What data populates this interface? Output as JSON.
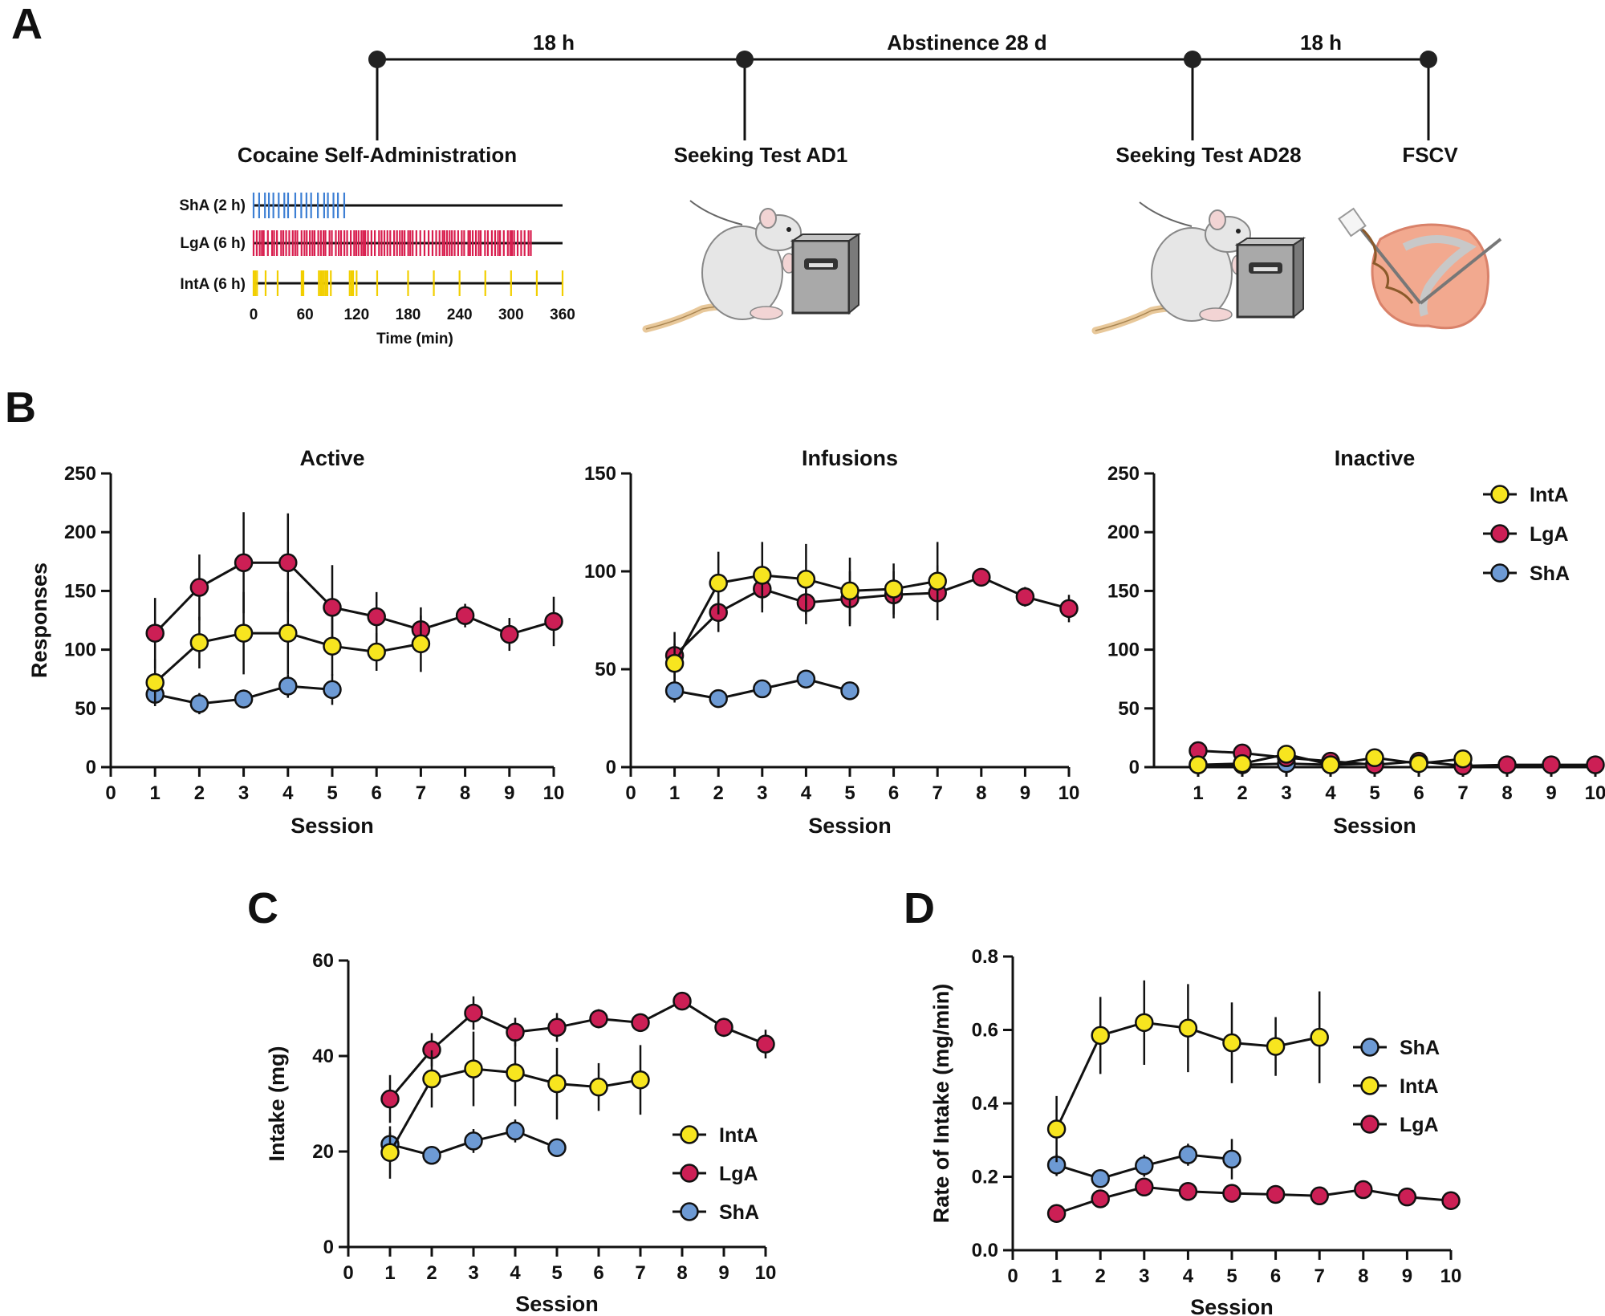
{
  "colors": {
    "IntA": "#f7e51f",
    "LgA": "#cc1f55",
    "ShA": "#6d9ad4",
    "outline": "#111111",
    "raster_ShA": "#3d7fd4",
    "raster_LgA": "#d81e4e",
    "raster_IntA": "#f2cf00"
  },
  "panel_A": {
    "letter": "A",
    "timeline_intervals": [
      "18 h",
      "Abstinence 28 d",
      "18 h"
    ],
    "timeline_events": [
      "Cocaine Self-Administration",
      "Seeking Test AD1",
      "Seeking Test AD28",
      "FSCV"
    ],
    "raster": {
      "rows": [
        {
          "label": "ShA (2 h)",
          "group": "ShA",
          "duration_min": 120
        },
        {
          "label": "LgA (6 h)",
          "group": "LgA",
          "duration_min": 360
        },
        {
          "label": "IntA (6 h)",
          "group": "IntA",
          "duration_min": 360
        }
      ],
      "ticks": [
        "0",
        "60",
        "120",
        "180",
        "240",
        "300",
        "360"
      ],
      "xlabel": "Time (min)",
      "xlim": [
        0,
        360
      ]
    },
    "icons": [
      "rat-icon",
      "lever-box-icon",
      "rat-icon",
      "lever-box-icon",
      "brain-slice-icon"
    ]
  },
  "chart_data": [
    {
      "panel": "B",
      "type": "line",
      "title": "Active",
      "xlabel": "Session",
      "ylabel": "Responses",
      "xlim": [
        0,
        10
      ],
      "ylim": [
        0,
        250
      ],
      "xticks": [
        0,
        1,
        2,
        3,
        4,
        5,
        6,
        7,
        8,
        9,
        10
      ],
      "yticks": [
        0,
        50,
        100,
        150,
        200,
        250
      ],
      "series": [
        {
          "name": "ShA",
          "x": [
            1,
            2,
            3,
            4,
            5
          ],
          "values": [
            62,
            54,
            58,
            69,
            66
          ],
          "err": [
            10,
            9,
            8,
            10,
            13
          ]
        },
        {
          "name": "LgA",
          "x": [
            1,
            2,
            3,
            4,
            5,
            6,
            7,
            8,
            9,
            10
          ],
          "values": [
            114,
            153,
            174,
            174,
            136,
            128,
            117,
            129,
            113,
            124
          ],
          "err": [
            30,
            28,
            43,
            42,
            36,
            21,
            19,
            10,
            14,
            21
          ]
        },
        {
          "name": "IntA",
          "x": [
            1,
            2,
            3,
            4,
            5,
            6,
            7
          ],
          "values": [
            72,
            106,
            114,
            114,
            103,
            98,
            105
          ],
          "err": [
            20,
            22,
            35,
            35,
            25,
            16,
            24
          ]
        }
      ]
    },
    {
      "panel": "B",
      "type": "line",
      "title": "Infusions",
      "xlabel": "Session",
      "ylabel": "",
      "xlim": [
        0,
        10
      ],
      "ylim": [
        0,
        150
      ],
      "xticks": [
        0,
        1,
        2,
        3,
        4,
        5,
        6,
        7,
        8,
        9,
        10
      ],
      "yticks": [
        0,
        50,
        100,
        150
      ],
      "series": [
        {
          "name": "ShA",
          "x": [
            1,
            2,
            3,
            4,
            5
          ],
          "values": [
            39,
            35,
            40,
            45,
            39
          ],
          "err": [
            6,
            4,
            4,
            4,
            4
          ]
        },
        {
          "name": "LgA",
          "x": [
            1,
            2,
            3,
            4,
            5,
            6,
            7,
            8,
            9,
            10
          ],
          "values": [
            57,
            79,
            91,
            84,
            86,
            88,
            89,
            97,
            87,
            81
          ],
          "err": [
            12,
            10,
            12,
            11,
            14,
            12,
            14,
            4,
            5,
            7
          ]
        },
        {
          "name": "IntA",
          "x": [
            1,
            2,
            3,
            4,
            5,
            6,
            7
          ],
          "values": [
            53,
            94,
            98,
            96,
            90,
            91,
            95
          ],
          "err": [
            10,
            16,
            17,
            18,
            17,
            13,
            20
          ]
        }
      ]
    },
    {
      "panel": "B",
      "type": "line",
      "title": "Inactive",
      "xlabel": "Session",
      "ylabel": "",
      "xlim": [
        0,
        10
      ],
      "ylim": [
        0,
        250
      ],
      "xticks": [
        1,
        2,
        3,
        4,
        5,
        6,
        7,
        8,
        9,
        10
      ],
      "yticks": [
        0,
        50,
        100,
        150,
        200,
        250
      ],
      "legend": [
        "IntA",
        "LgA",
        "ShA"
      ],
      "legend_position": "top-right",
      "series": [
        {
          "name": "ShA",
          "x": [
            1,
            2,
            3,
            4,
            5
          ],
          "values": [
            2,
            2,
            3,
            2,
            3
          ],
          "err": [
            1,
            1,
            1,
            1,
            1
          ]
        },
        {
          "name": "LgA",
          "x": [
            1,
            2,
            3,
            4,
            5,
            6,
            7,
            8,
            9,
            10
          ],
          "values": [
            14,
            12,
            8,
            5,
            2,
            5,
            1,
            2,
            2,
            2
          ],
          "err": [
            4,
            3,
            3,
            2,
            1,
            2,
            1,
            1,
            1,
            1
          ]
        },
        {
          "name": "IntA",
          "x": [
            1,
            2,
            3,
            4,
            5,
            6,
            7
          ],
          "values": [
            2,
            3,
            11,
            2,
            8,
            3,
            7
          ],
          "err": [
            1,
            1,
            6,
            1,
            4,
            1,
            4
          ]
        }
      ]
    },
    {
      "panel": "C",
      "type": "line",
      "title": "",
      "xlabel": "Session",
      "ylabel": "Intake (mg)",
      "xlim": [
        0,
        10
      ],
      "ylim": [
        0,
        60
      ],
      "xticks": [
        0,
        1,
        2,
        3,
        4,
        5,
        6,
        7,
        8,
        9,
        10
      ],
      "yticks": [
        0,
        20,
        40,
        60
      ],
      "legend": [
        "IntA",
        "LgA",
        "ShA"
      ],
      "legend_position": "bottom-right",
      "series": [
        {
          "name": "ShA",
          "x": [
            1,
            2,
            3,
            4,
            5
          ],
          "values": [
            21.5,
            19.2,
            22.2,
            24.3,
            20.8
          ],
          "err": [
            2.5,
            1.2,
            2.5,
            2.4,
            1.0
          ]
        },
        {
          "name": "LgA",
          "x": [
            1,
            2,
            3,
            4,
            5,
            6,
            7,
            8,
            9,
            10
          ],
          "values": [
            31.0,
            41.3,
            49.0,
            45.0,
            46.0,
            47.8,
            47.0,
            51.5,
            46.0,
            42.5
          ],
          "err": [
            5,
            3.5,
            3.5,
            3,
            3,
            2,
            1.5,
            1,
            2,
            3
          ]
        },
        {
          "name": "IntA",
          "x": [
            1,
            2,
            3,
            4,
            5,
            6,
            7
          ],
          "values": [
            19.8,
            35.2,
            37.3,
            36.5,
            34.2,
            33.5,
            35.0
          ],
          "err": [
            5.5,
            6,
            7.8,
            7,
            7.5,
            5,
            7.3
          ]
        }
      ]
    },
    {
      "panel": "D",
      "type": "line",
      "title": "",
      "xlabel": "Session",
      "ylabel": "Rate of Intake (mg/min)",
      "xlim": [
        0,
        10
      ],
      "ylim": [
        0,
        0.8
      ],
      "xticks": [
        0,
        1,
        2,
        3,
        4,
        5,
        6,
        7,
        8,
        9,
        10
      ],
      "yticks": [
        0.0,
        0.2,
        0.4,
        0.6,
        0.8
      ],
      "ytick_labels": [
        "0.0",
        "0.2",
        "0.4",
        "0.6",
        "0.8"
      ],
      "legend": [
        "ShA",
        "IntA",
        "LgA"
      ],
      "legend_position": "right",
      "series": [
        {
          "name": "LgA",
          "x": [
            1,
            2,
            3,
            4,
            5,
            6,
            7,
            8,
            9,
            10
          ],
          "values": [
            0.1,
            0.14,
            0.172,
            0.16,
            0.155,
            0.152,
            0.148,
            0.165,
            0.145,
            0.135
          ],
          "err": [
            0.01,
            0.015,
            0.02,
            0.01,
            0.01,
            0.01,
            0.01,
            0.01,
            0.01,
            0.01
          ]
        },
        {
          "name": "ShA",
          "x": [
            1,
            2,
            3,
            4,
            5
          ],
          "values": [
            0.232,
            0.195,
            0.23,
            0.26,
            0.248
          ],
          "err": [
            0.03,
            0.02,
            0.03,
            0.03,
            0.055
          ]
        },
        {
          "name": "IntA",
          "x": [
            1,
            2,
            3,
            4,
            5,
            6,
            7
          ],
          "values": [
            0.33,
            0.585,
            0.62,
            0.605,
            0.565,
            0.555,
            0.58
          ],
          "err": [
            0.09,
            0.105,
            0.115,
            0.12,
            0.11,
            0.08,
            0.125
          ]
        }
      ]
    }
  ]
}
